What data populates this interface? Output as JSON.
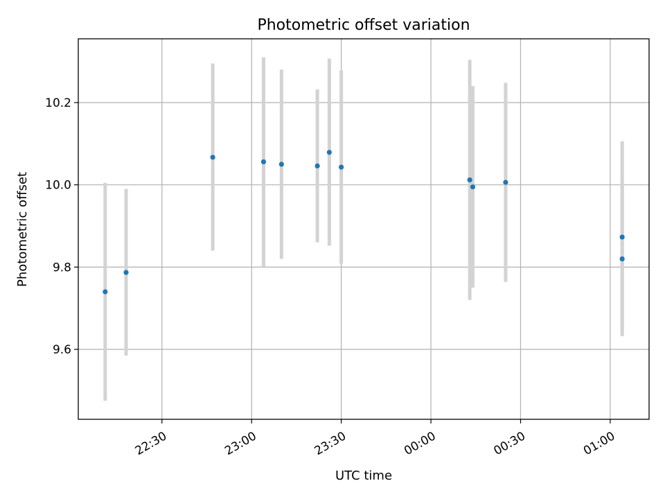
{
  "chart_data": {
    "type": "scatter",
    "title": "Photometric offset variation",
    "xlabel": "UTC time",
    "ylabel": "Photometric offset",
    "x_type": "time",
    "xlim": [
      "22:02",
      "01:13"
    ],
    "ylim": [
      9.43,
      10.355
    ],
    "xticks": [
      "22:30",
      "23:00",
      "23:30",
      "00:00",
      "00:30",
      "01:00"
    ],
    "yticks": [
      9.6,
      9.8,
      10.0,
      10.2
    ],
    "ytick_labels": [
      "9.6",
      "9.8",
      "10.0",
      "10.2"
    ],
    "grid": true,
    "colors": {
      "points": "#1f77b4",
      "error_bars": "#d3d3d3",
      "grid": "#b0b0b0"
    },
    "points": [
      {
        "x": "22:11",
        "y": 9.74,
        "y_low": 9.475,
        "y_high": 10.005
      },
      {
        "x": "22:18",
        "y": 9.787,
        "y_low": 9.585,
        "y_high": 9.99
      },
      {
        "x": "22:47",
        "y": 10.067,
        "y_low": 9.84,
        "y_high": 10.295
      },
      {
        "x": "23:04",
        "y": 10.056,
        "y_low": 9.8,
        "y_high": 10.31
      },
      {
        "x": "23:10",
        "y": 10.05,
        "y_low": 9.82,
        "y_high": 10.28
      },
      {
        "x": "23:22",
        "y": 10.046,
        "y_low": 9.86,
        "y_high": 10.232
      },
      {
        "x": "23:26",
        "y": 10.079,
        "y_low": 9.852,
        "y_high": 10.307
      },
      {
        "x": "23:30",
        "y": 10.043,
        "y_low": 9.808,
        "y_high": 10.278
      },
      {
        "x": "00:13",
        "y": 10.012,
        "y_low": 9.72,
        "y_high": 10.304
      },
      {
        "x": "00:14",
        "y": 9.995,
        "y_low": 9.75,
        "y_high": 10.24
      },
      {
        "x": "00:25",
        "y": 10.006,
        "y_low": 9.764,
        "y_high": 10.248
      },
      {
        "x": "01:04",
        "y": 9.82,
        "y_low": 9.632,
        "y_high": 10.008
      },
      {
        "x": "01:04",
        "y": 9.873,
        "y_low": 9.64,
        "y_high": 10.106
      }
    ]
  }
}
